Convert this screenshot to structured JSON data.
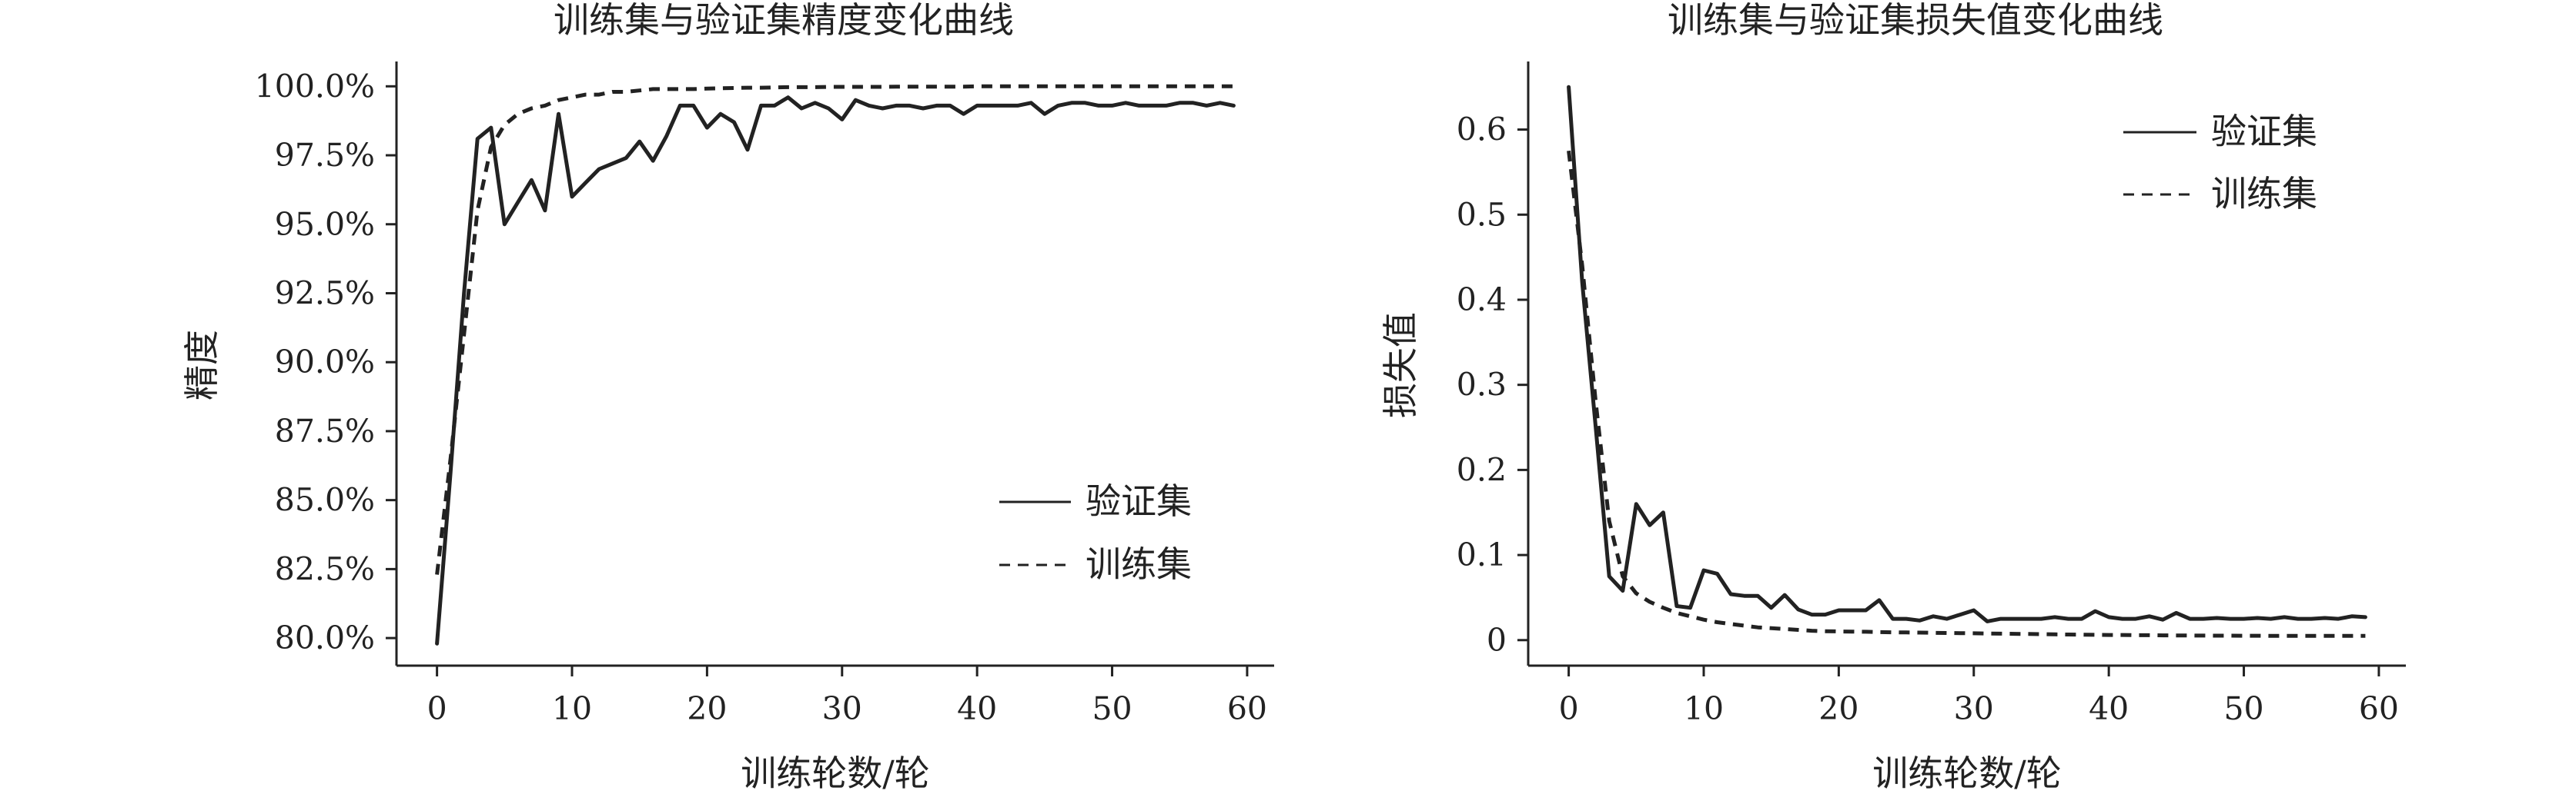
{
  "chart_data": [
    {
      "type": "line",
      "title": "训练集与验证集精度变化曲线",
      "xlabel": "训练轮数/轮",
      "ylabel": "精度",
      "xlim": [
        -3,
        62
      ],
      "ylim": [
        79.0,
        100.9
      ],
      "x_ticks": [
        0,
        10,
        20,
        30,
        40,
        50,
        60
      ],
      "y_ticks": [
        80.0,
        82.5,
        85.0,
        87.5,
        90.0,
        92.5,
        95.0,
        97.5,
        100.0
      ],
      "y_tick_format": "percent_1dp",
      "legend_position": "center-right",
      "grid": false,
      "series": [
        {
          "name": "验证集",
          "style": "solid",
          "color": "#222222",
          "x": [
            0,
            1,
            2,
            3,
            4,
            5,
            6,
            7,
            8,
            9,
            10,
            11,
            12,
            13,
            14,
            15,
            16,
            17,
            18,
            19,
            20,
            21,
            22,
            23,
            24,
            25,
            26,
            27,
            28,
            29,
            30,
            31,
            32,
            33,
            34,
            35,
            36,
            37,
            38,
            39,
            40,
            41,
            42,
            43,
            44,
            45,
            46,
            47,
            48,
            49,
            50,
            51,
            52,
            53,
            54,
            55,
            56,
            57,
            58,
            59
          ],
          "values": [
            79.8,
            86.0,
            92.5,
            98.1,
            98.5,
            95.0,
            95.8,
            96.6,
            95.5,
            99.0,
            96.0,
            96.5,
            97.0,
            97.2,
            97.4,
            98.0,
            97.3,
            98.2,
            99.3,
            99.3,
            98.5,
            99.0,
            98.7,
            97.7,
            99.3,
            99.3,
            99.6,
            99.2,
            99.4,
            99.2,
            98.8,
            99.5,
            99.3,
            99.2,
            99.3,
            99.3,
            99.2,
            99.3,
            99.3,
            99.0,
            99.3,
            99.3,
            99.3,
            99.3,
            99.4,
            99.0,
            99.3,
            99.4,
            99.4,
            99.3,
            99.3,
            99.4,
            99.3,
            99.3,
            99.3,
            99.4,
            99.4,
            99.3,
            99.4,
            99.3
          ]
        },
        {
          "name": "训练集",
          "style": "dashed",
          "color": "#222222",
          "x": [
            0,
            1,
            2,
            3,
            4,
            5,
            6,
            7,
            8,
            9,
            10,
            11,
            12,
            13,
            14,
            15,
            16,
            17,
            18,
            19,
            20,
            21,
            22,
            23,
            24,
            25,
            26,
            27,
            28,
            29,
            30,
            31,
            32,
            33,
            34,
            35,
            36,
            37,
            38,
            39,
            40,
            41,
            42,
            43,
            44,
            45,
            46,
            47,
            48,
            49,
            50,
            51,
            52,
            53,
            54,
            55,
            56,
            57,
            58,
            59
          ],
          "values": [
            82.3,
            86.5,
            91.0,
            95.5,
            97.8,
            98.6,
            99.0,
            99.2,
            99.3,
            99.5,
            99.6,
            99.7,
            99.7,
            99.8,
            99.8,
            99.85,
            99.9,
            99.9,
            99.9,
            99.9,
            99.92,
            99.93,
            99.94,
            99.95,
            99.95,
            99.96,
            99.97,
            99.97,
            99.97,
            99.98,
            99.98,
            99.98,
            99.98,
            99.98,
            99.99,
            99.99,
            99.99,
            99.99,
            99.99,
            99.99,
            100.0,
            100.0,
            100.0,
            100.0,
            100.0,
            100.0,
            100.0,
            100.0,
            100.0,
            100.0,
            100.0,
            100.0,
            100.0,
            100.0,
            100.0,
            100.0,
            100.0,
            100.0,
            100.0,
            100.0
          ]
        }
      ]
    },
    {
      "type": "line",
      "title": "训练集与验证集损失值变化曲线",
      "xlabel": "训练轮数/轮",
      "ylabel": "损失值",
      "xlim": [
        -3,
        62
      ],
      "ylim": [
        -0.03,
        0.68
      ],
      "x_ticks": [
        0,
        10,
        20,
        30,
        40,
        50,
        60
      ],
      "y_ticks": [
        0,
        0.1,
        0.2,
        0.3,
        0.4,
        0.5,
        0.6
      ],
      "y_tick_format": "decimal_1dp_zero_plain",
      "legend_position": "top-right",
      "grid": false,
      "series": [
        {
          "name": "验证集",
          "style": "solid",
          "color": "#222222",
          "x": [
            0,
            1,
            2,
            3,
            4,
            5,
            6,
            7,
            8,
            9,
            10,
            11,
            12,
            13,
            14,
            15,
            16,
            17,
            18,
            19,
            20,
            21,
            22,
            23,
            24,
            25,
            26,
            27,
            28,
            29,
            30,
            31,
            32,
            33,
            34,
            35,
            36,
            37,
            38,
            39,
            40,
            41,
            42,
            43,
            44,
            45,
            46,
            47,
            48,
            49,
            50,
            51,
            52,
            53,
            54,
            55,
            56,
            57,
            58,
            59
          ],
          "values": [
            0.65,
            0.42,
            0.25,
            0.075,
            0.058,
            0.16,
            0.135,
            0.15,
            0.04,
            0.038,
            0.082,
            0.078,
            0.054,
            0.052,
            0.052,
            0.038,
            0.053,
            0.036,
            0.03,
            0.03,
            0.035,
            0.035,
            0.035,
            0.047,
            0.025,
            0.025,
            0.023,
            0.028,
            0.025,
            0.03,
            0.035,
            0.022,
            0.025,
            0.025,
            0.025,
            0.025,
            0.027,
            0.025,
            0.025,
            0.034,
            0.027,
            0.025,
            0.025,
            0.028,
            0.024,
            0.032,
            0.025,
            0.025,
            0.026,
            0.025,
            0.025,
            0.026,
            0.025,
            0.027,
            0.025,
            0.025,
            0.026,
            0.025,
            0.028,
            0.027
          ]
        },
        {
          "name": "训练集",
          "style": "dashed",
          "color": "#222222",
          "x": [
            0,
            1,
            2,
            3,
            4,
            5,
            6,
            7,
            8,
            9,
            10,
            11,
            12,
            13,
            14,
            15,
            16,
            17,
            18,
            19,
            20,
            21,
            22,
            23,
            24,
            25,
            26,
            27,
            28,
            29,
            30,
            31,
            32,
            33,
            34,
            35,
            36,
            37,
            38,
            39,
            40,
            41,
            42,
            43,
            44,
            45,
            46,
            47,
            48,
            49,
            50,
            51,
            52,
            53,
            54,
            55,
            56,
            57,
            58,
            59
          ],
          "values": [
            0.575,
            0.44,
            0.28,
            0.14,
            0.075,
            0.055,
            0.045,
            0.038,
            0.032,
            0.028,
            0.024,
            0.021,
            0.019,
            0.017,
            0.015,
            0.014,
            0.013,
            0.012,
            0.011,
            0.0105,
            0.0102,
            0.01,
            0.0098,
            0.0095,
            0.0092,
            0.009,
            0.0088,
            0.0086,
            0.0084,
            0.0082,
            0.008,
            0.0078,
            0.0076,
            0.0074,
            0.0072,
            0.007,
            0.0068,
            0.0066,
            0.0064,
            0.0062,
            0.006,
            0.006,
            0.0058,
            0.0058,
            0.0056,
            0.0055,
            0.0054,
            0.0053,
            0.0052,
            0.0052,
            0.0051,
            0.0051,
            0.005,
            0.005,
            0.005,
            0.005,
            0.005,
            0.005,
            0.005,
            0.005
          ]
        }
      ]
    }
  ]
}
